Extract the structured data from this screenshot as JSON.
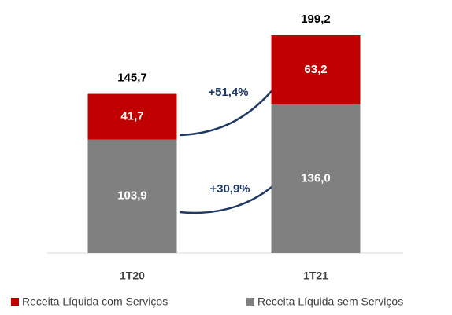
{
  "chart_data": {
    "type": "stacked_bar",
    "categories": [
      "1T20",
      "1T21"
    ],
    "series": [
      {
        "name": "Receita Líquida com Serviços",
        "color": "#c00000",
        "values": [
          41.7,
          63.2
        ],
        "value_labels": [
          "41,7",
          "63,2"
        ]
      },
      {
        "name": "Receita Líquida sem Serviços",
        "color": "#808080",
        "values": [
          103.9,
          136.0
        ],
        "value_labels": [
          "103,9",
          "136,0"
        ]
      }
    ],
    "totals": [
      145.7,
      199.2
    ],
    "total_labels": [
      "145,7",
      "199,2"
    ],
    "annotations": [
      "+51,4%",
      "+30,9%"
    ]
  }
}
